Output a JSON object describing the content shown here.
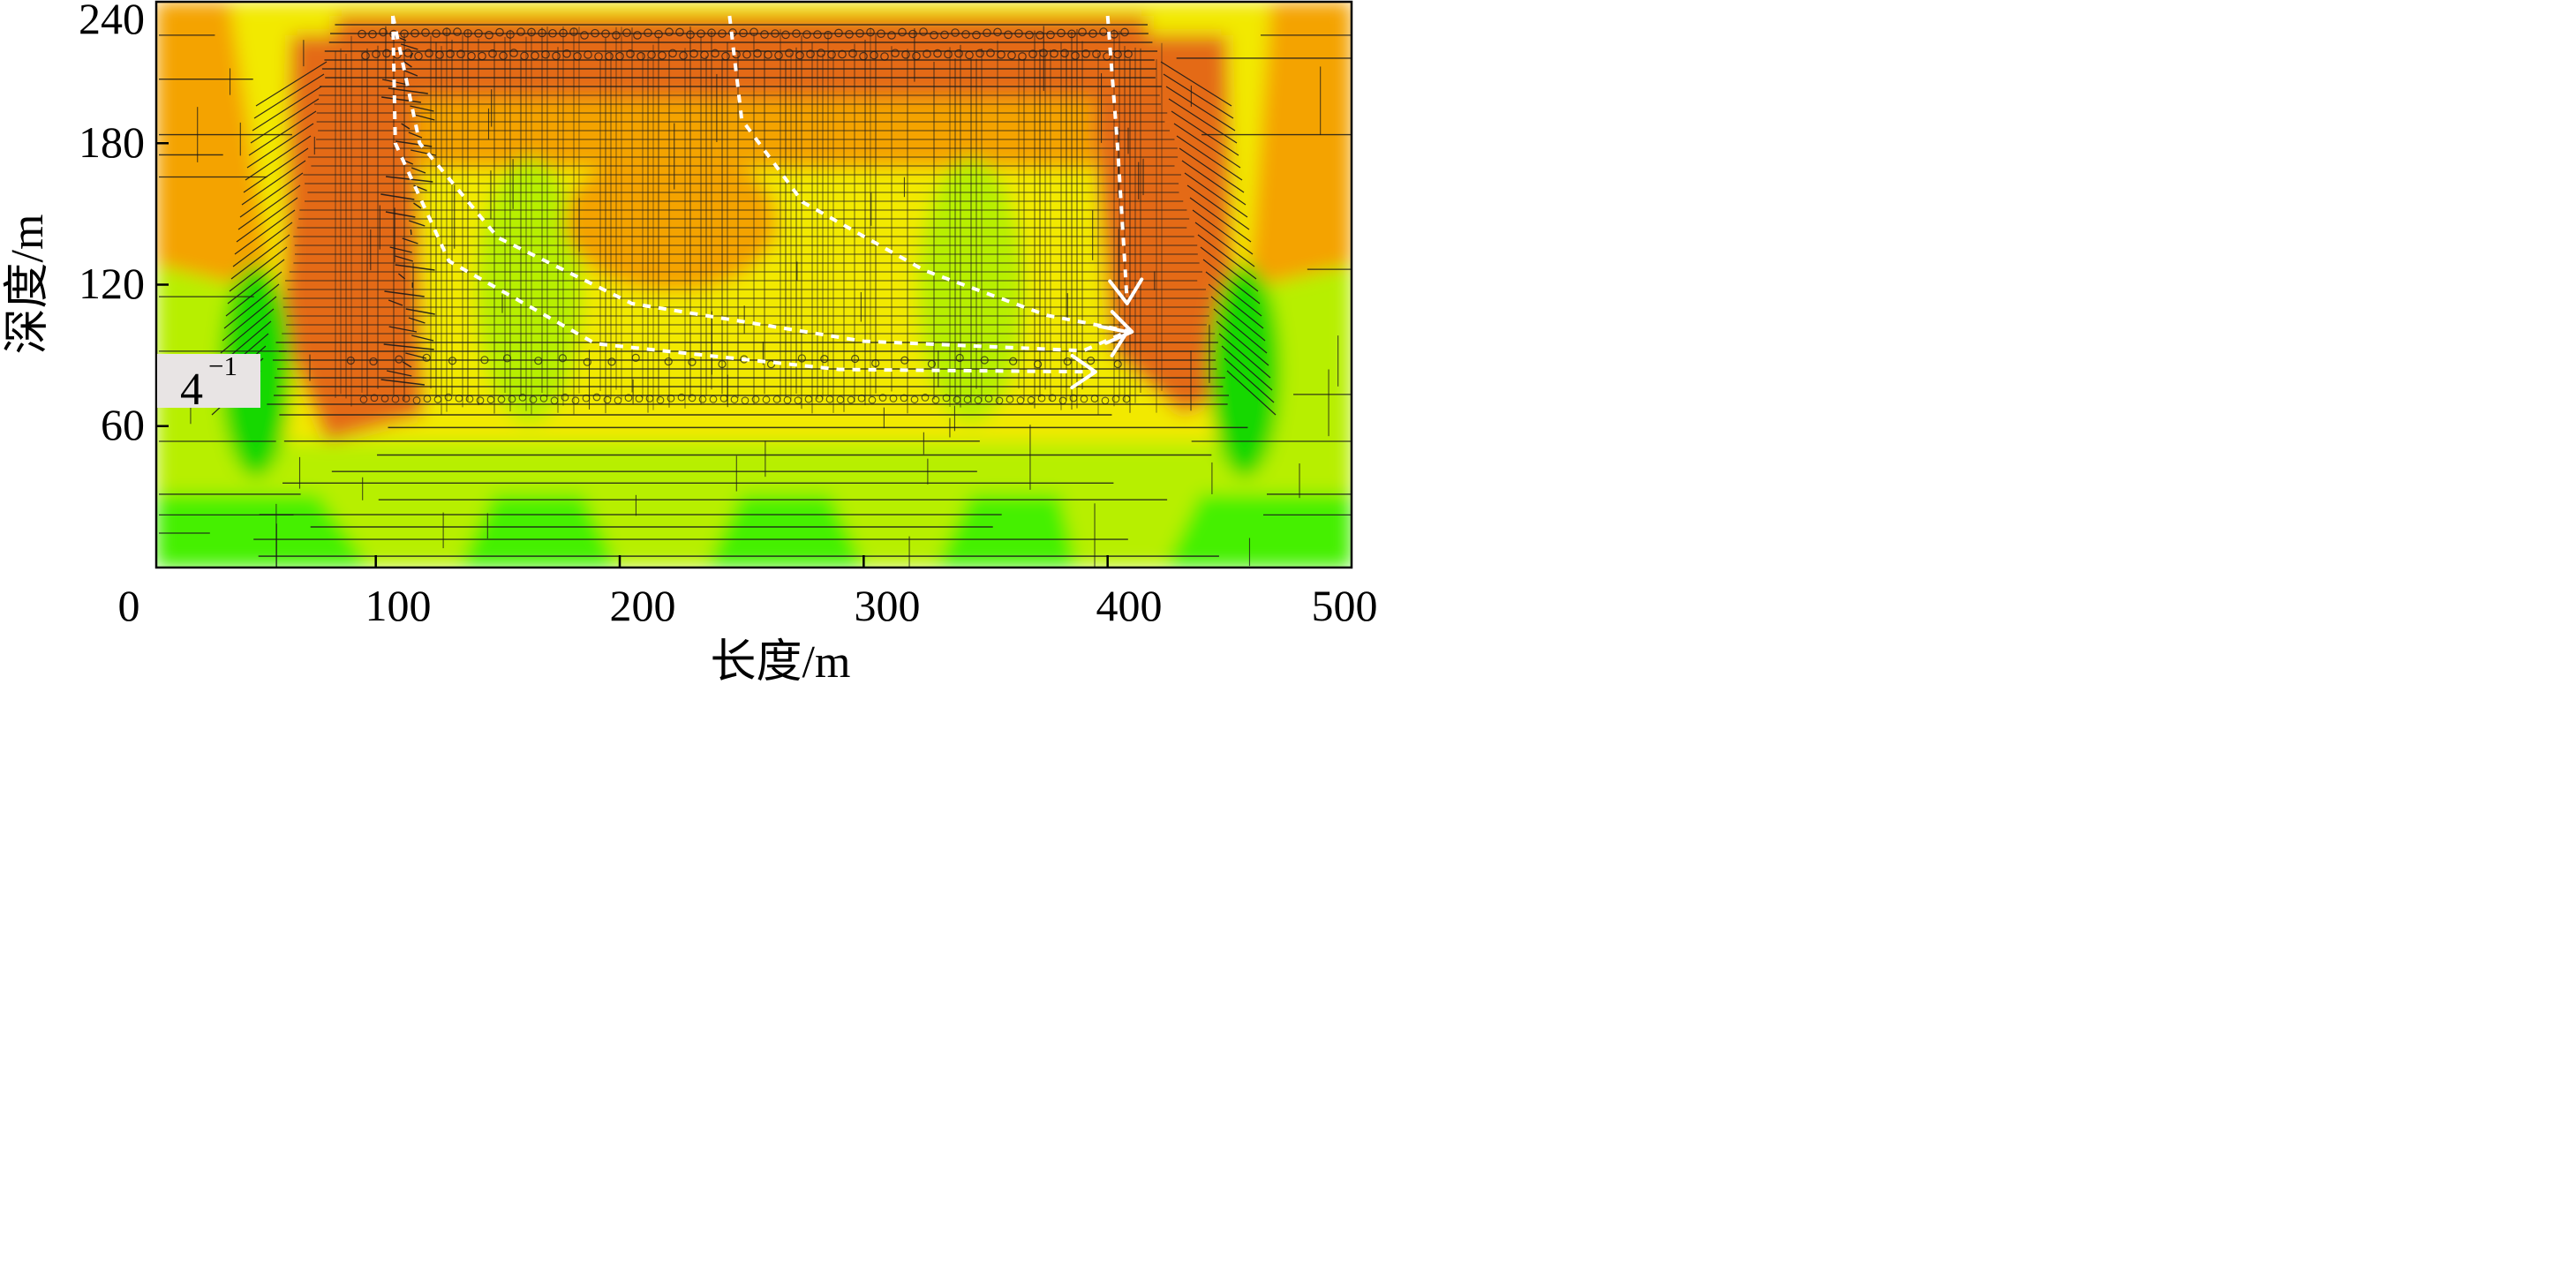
{
  "chart_data": {
    "type": "heatmap",
    "x_axis": {
      "label": "长度/m",
      "range": [
        0,
        500
      ],
      "ticks": [
        0,
        100,
        200,
        300,
        400,
        500
      ]
    },
    "y_axis": {
      "label": "深度/m",
      "range": [
        0,
        240
      ],
      "ticks": [
        60,
        120,
        180,
        240
      ]
    },
    "stage_label": {
      "base": "4",
      "exponent": "−1"
    },
    "colors": {
      "high": "#e46a14",
      "mid_high": "#f4a300",
      "mid": "#f2e900",
      "mid_low": "#b7ef00",
      "low": "#44f000",
      "lowest": "#17d800",
      "fracture": "#1a1a1a",
      "flow_arrow": "#ffffff"
    },
    "flow_paths": [
      {
        "style": "dashed",
        "points": [
          [
            107,
            234
          ],
          [
            118,
            180
          ],
          [
            150,
            140
          ],
          [
            205,
            112
          ],
          [
            300,
            96
          ],
          [
            390,
            92
          ],
          [
            408,
            100
          ]
        ]
      },
      {
        "style": "dashed",
        "points": [
          [
            245,
            234
          ],
          [
            250,
            190
          ],
          [
            275,
            155
          ],
          [
            325,
            126
          ],
          [
            375,
            107
          ],
          [
            410,
            100
          ]
        ]
      },
      {
        "style": "dashed",
        "points": [
          [
            107,
            234
          ],
          [
            108,
            180
          ],
          [
            130,
            130
          ],
          [
            190,
            95
          ],
          [
            290,
            84
          ],
          [
            395,
            83
          ]
        ]
      },
      {
        "style": "dashed",
        "points": [
          [
            400,
            234
          ],
          [
            404,
            180
          ],
          [
            407,
            130
          ],
          [
            408,
            112
          ]
        ]
      }
    ],
    "grid": false,
    "legend": "none"
  }
}
